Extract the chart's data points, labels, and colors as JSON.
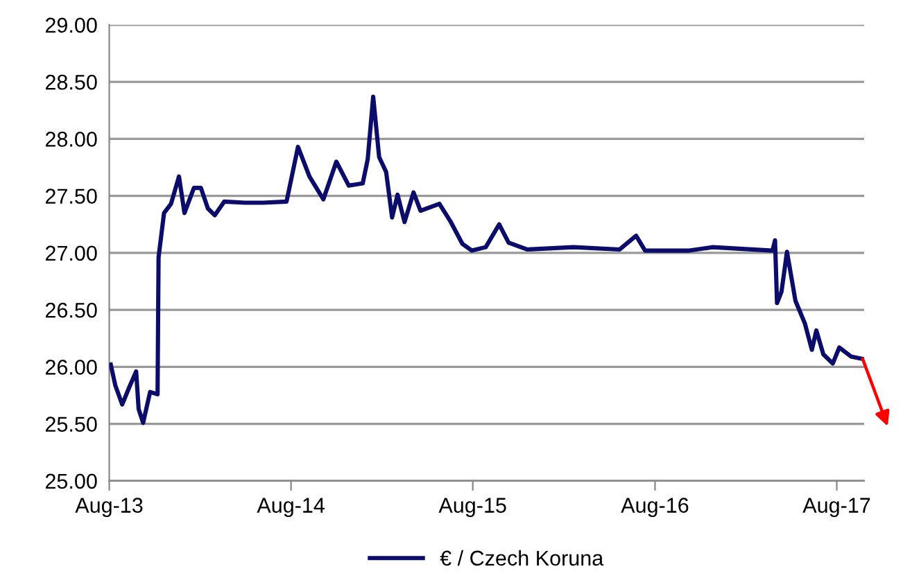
{
  "chart_data": {
    "type": "line",
    "x": [
      "2013-08-04",
      "2013-08-13",
      "2013-08-27",
      "2013-09-10",
      "2013-09-24",
      "2013-09-29",
      "2013-10-08",
      "2013-10-22",
      "2013-11-06",
      "2013-11-08",
      "2013-11-19",
      "2013-12-03",
      "2013-12-19",
      "2013-12-30",
      "2014-01-18",
      "2014-02-01",
      "2014-02-15",
      "2014-03-01",
      "2014-03-20",
      "2014-04-30",
      "2014-06-06",
      "2014-07-23",
      "2014-08-15",
      "2014-09-07",
      "2014-10-05",
      "2014-10-31",
      "2014-11-25",
      "2014-12-23",
      "2015-01-02",
      "2015-01-13",
      "2015-01-25",
      "2015-02-08",
      "2015-02-20",
      "2015-03-03",
      "2015-03-17",
      "2015-04-04",
      "2015-04-18",
      "2015-05-26",
      "2015-06-18",
      "2015-07-11",
      "2015-07-30",
      "2015-08-27",
      "2015-09-23",
      "2015-10-12",
      "2015-11-18",
      "2016-02-19",
      "2016-05-22",
      "2016-06-24",
      "2016-07-12",
      "2016-10-09",
      "2016-11-24",
      "2017-03-25",
      "2017-03-30",
      "2017-04-03",
      "2017-04-12",
      "2017-04-23",
      "2017-05-10",
      "2017-05-29",
      "2017-06-12",
      "2017-06-21",
      "2017-07-05",
      "2017-07-24",
      "2017-08-06",
      "2017-08-30",
      "2017-09-22"
    ],
    "series": [
      {
        "name": "€ / Czech Koruna",
        "color": "#0c0c6b",
        "values": [
          26.02,
          25.84,
          25.67,
          25.82,
          25.96,
          25.63,
          25.51,
          25.78,
          25.76,
          26.96,
          27.35,
          27.43,
          27.67,
          27.35,
          27.57,
          27.57,
          27.39,
          27.33,
          27.45,
          27.44,
          27.44,
          27.45,
          27.93,
          27.67,
          27.47,
          27.8,
          27.59,
          27.61,
          27.82,
          28.37,
          27.84,
          27.71,
          27.31,
          27.51,
          27.27,
          27.53,
          27.37,
          27.43,
          27.27,
          27.08,
          27.02,
          27.05,
          27.25,
          27.09,
          27.03,
          27.05,
          27.03,
          27.15,
          27.02,
          27.02,
          27.05,
          27.02,
          27.11,
          26.56,
          26.66,
          27.01,
          26.58,
          26.38,
          26.15,
          26.32,
          26.11,
          26.03,
          26.17,
          26.09,
          26.07
        ]
      }
    ],
    "xlim": [
      "2013-08-01",
      "2017-09-25"
    ],
    "xticks": [
      {
        "value": "2013-08-01",
        "label": "Aug-13"
      },
      {
        "value": "2014-08-01",
        "label": "Aug-14"
      },
      {
        "value": "2015-08-01",
        "label": "Aug-15"
      },
      {
        "value": "2016-08-01",
        "label": "Aug-16"
      },
      {
        "value": "2017-08-01",
        "label": "Aug-17"
      }
    ],
    "ylim": [
      25,
      29
    ],
    "yticks": [
      {
        "value": 25,
        "label": "25.00"
      },
      {
        "value": 25.5,
        "label": "25.50"
      },
      {
        "value": 26,
        "label": "26.00"
      },
      {
        "value": 26.5,
        "label": "26.50"
      },
      {
        "value": 27,
        "label": "27.00"
      },
      {
        "value": 27.5,
        "label": "27.50"
      },
      {
        "value": 28,
        "label": "28.00"
      },
      {
        "value": 28.5,
        "label": "28.50"
      },
      {
        "value": 29,
        "label": "29.00"
      }
    ],
    "grid": "y",
    "legend": "bottom",
    "line_style": "solid",
    "marker": "none"
  }
}
